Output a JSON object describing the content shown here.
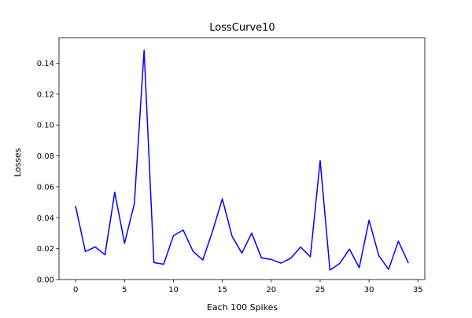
{
  "chart_data": {
    "type": "line",
    "title": "LossCurve10",
    "xlabel": "Each 100 Spikes",
    "ylabel": "Losses",
    "xlim": [
      -1.7,
      35.7
    ],
    "ylim": [
      0.0,
      0.1565
    ],
    "xticks": [
      0,
      5,
      10,
      15,
      20,
      25,
      30,
      35
    ],
    "xtick_labels": [
      "0",
      "5",
      "10",
      "15",
      "20",
      "25",
      "30",
      "35"
    ],
    "yticks": [
      0.0,
      0.02,
      0.04,
      0.06,
      0.08,
      0.1,
      0.12,
      0.14
    ],
    "ytick_labels": [
      "0.00",
      "0.02",
      "0.04",
      "0.06",
      "0.08",
      "0.10",
      "0.12",
      "0.14"
    ],
    "grid": false,
    "series": [
      {
        "color": "#0000ff",
        "x": [
          0,
          1,
          2,
          3,
          4,
          5,
          6,
          7,
          8,
          9,
          10,
          11,
          12,
          13,
          14,
          15,
          16,
          17,
          18,
          19,
          20,
          21,
          22,
          23,
          24,
          25,
          26,
          27,
          28,
          29,
          30,
          31,
          32,
          33,
          34
        ],
        "y": [
          0.0473,
          0.0181,
          0.0211,
          0.016,
          0.0565,
          0.0234,
          0.049,
          0.1484,
          0.011,
          0.0099,
          0.0284,
          0.032,
          0.0183,
          0.0126,
          0.0313,
          0.0522,
          0.0279,
          0.0171,
          0.03,
          0.014,
          0.013,
          0.0106,
          0.0138,
          0.021,
          0.0147,
          0.077,
          0.0061,
          0.0104,
          0.0197,
          0.0077,
          0.0384,
          0.0154,
          0.0066,
          0.0248,
          0.0109
        ]
      }
    ]
  }
}
